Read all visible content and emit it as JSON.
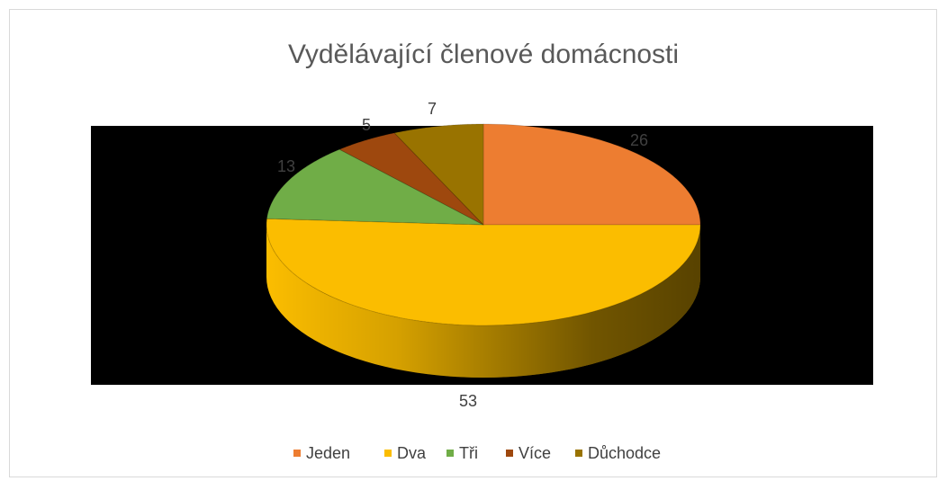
{
  "chart_data": {
    "type": "pie",
    "title": "Vydělávající členové domácnosti",
    "categories": [
      "Jeden",
      "Dva",
      "Tři",
      "Více",
      "Důchodce"
    ],
    "values": [
      26,
      53,
      13,
      5,
      7
    ],
    "colors": [
      "#ed7d31",
      "#fbbd00",
      "#70ad47",
      "#9e480e",
      "#997300"
    ],
    "legend": "bottom"
  }
}
